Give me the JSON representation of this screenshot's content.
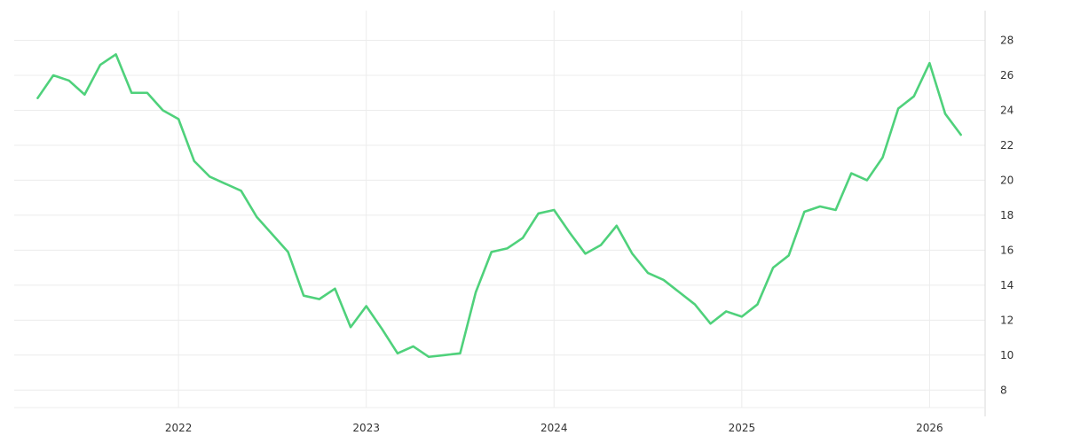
{
  "chart_data": {
    "type": "line",
    "title": "",
    "xlabel": "",
    "ylabel": "",
    "x": [
      "2021-04",
      "2021-05",
      "2021-06",
      "2021-07",
      "2021-08",
      "2021-09",
      "2021-10",
      "2021-11",
      "2021-12",
      "2022-01",
      "2022-02",
      "2022-03",
      "2022-04",
      "2022-05",
      "2022-06",
      "2022-07",
      "2022-08",
      "2022-09",
      "2022-10",
      "2022-11",
      "2022-12",
      "2023-01",
      "2023-02",
      "2023-03",
      "2023-04",
      "2023-05",
      "2023-06",
      "2023-07",
      "2023-08",
      "2023-09",
      "2023-10",
      "2023-11",
      "2023-12",
      "2024-01",
      "2024-02",
      "2024-03",
      "2024-04",
      "2024-05",
      "2024-06",
      "2024-07",
      "2024-08",
      "2024-09",
      "2024-10",
      "2024-11",
      "2024-12",
      "2025-01",
      "2025-02",
      "2025-03",
      "2025-04",
      "2025-05",
      "2025-06",
      "2025-07",
      "2025-08",
      "2025-09",
      "2025-10",
      "2025-11",
      "2025-12",
      "2026-01",
      "2026-02",
      "2026-03"
    ],
    "series": [
      {
        "name": "",
        "values": [
          24.7,
          26.0,
          25.7,
          24.9,
          26.6,
          27.2,
          25.0,
          25.0,
          24.0,
          23.5,
          21.1,
          20.2,
          19.8,
          19.4,
          17.9,
          16.9,
          15.9,
          13.4,
          13.2,
          13.8,
          11.6,
          12.8,
          11.5,
          10.1,
          10.5,
          9.9,
          10.0,
          10.1,
          13.6,
          15.9,
          16.1,
          16.7,
          18.1,
          18.3,
          17.0,
          15.8,
          16.3,
          17.4,
          15.8,
          14.7,
          14.3,
          13.6,
          12.9,
          11.8,
          12.5,
          12.2,
          12.9,
          15.0,
          15.7,
          18.2,
          18.5,
          18.3,
          20.4,
          20.0,
          21.3,
          24.1,
          24.8,
          26.7,
          23.8,
          22.6
        ]
      }
    ],
    "xticks": [
      "2022",
      "2023",
      "2024",
      "2025",
      "2026"
    ],
    "yticks": [
      8,
      10,
      12,
      14,
      16,
      18,
      20,
      22,
      24,
      26,
      28
    ],
    "ylim": [
      7,
      29.7
    ],
    "xlim": [
      "2021-04",
      "2026-03"
    ],
    "grid": true,
    "legend": "none",
    "y_axis_side": "right",
    "line_color": "#4fd17b"
  }
}
